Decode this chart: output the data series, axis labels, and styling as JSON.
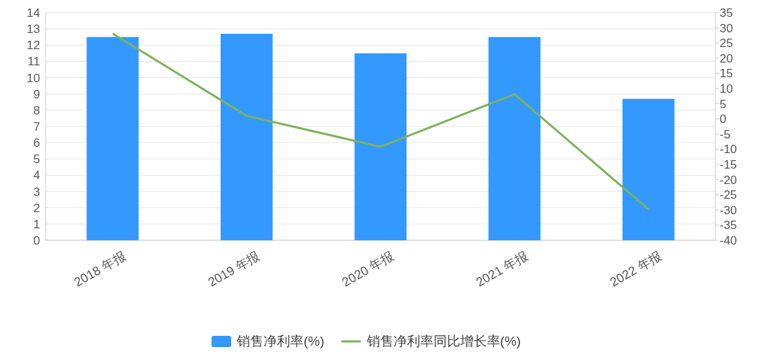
{
  "chart_data": {
    "type": "bar",
    "categories": [
      "2018 年报",
      "2019 年报",
      "2020 年报",
      "2021 年报",
      "2022 年报"
    ],
    "series": [
      {
        "name": "销售净利率(%)",
        "color": "#3399ff",
        "values": [
          12.5,
          12.7,
          11.5,
          12.5,
          8.7
        ]
      },
      {
        "name": "销售净利率同比增长率(%)",
        "type": "line",
        "axis": "y2",
        "color": "#7db25c",
        "values": [
          28.1,
          1.0,
          -9.2,
          8.1,
          -29.8
        ]
      }
    ],
    "ylim": [
      0,
      14
    ],
    "yticks": [
      0,
      1,
      2,
      3,
      4,
      5,
      6,
      7,
      8,
      9,
      10,
      11,
      12,
      13,
      14
    ],
    "y2lim": [
      -40,
      35
    ],
    "y2ticks": [
      -40,
      -35,
      -30,
      -25,
      -20,
      -15,
      -10,
      -5,
      0,
      5,
      10,
      15,
      20,
      25,
      30,
      35
    ],
    "grid": "y",
    "legend": "bottom",
    "marker": "none",
    "line_style": "solid"
  }
}
